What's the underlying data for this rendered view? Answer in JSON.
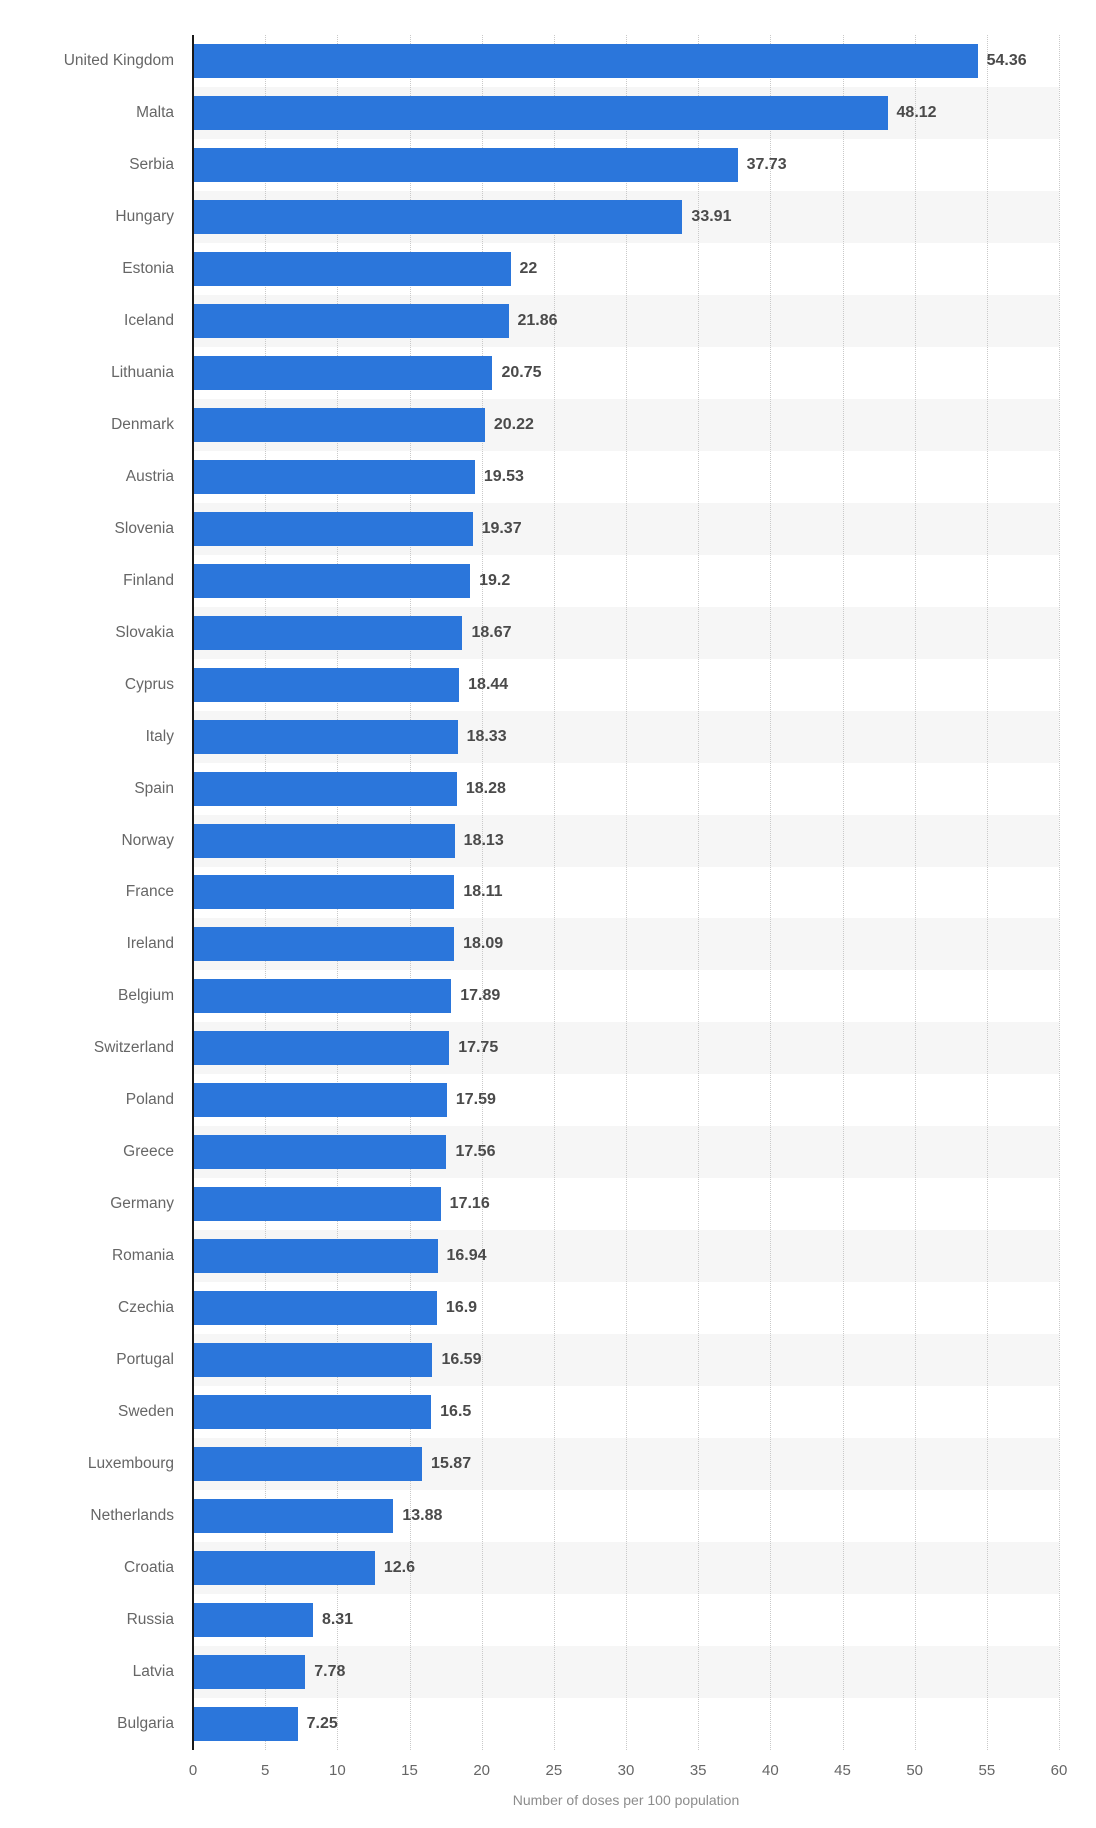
{
  "chart_data": {
    "type": "bar",
    "orientation": "horizontal",
    "title": "",
    "xlabel": "Number of doses per 100 population",
    "xlim": [
      0,
      60
    ],
    "x_ticks": [
      0,
      5,
      10,
      15,
      20,
      25,
      30,
      35,
      40,
      45,
      50,
      55,
      60
    ],
    "grid": "vertical-dotted",
    "legend": "none",
    "categories": [
      "United Kingdom",
      "Malta",
      "Serbia",
      "Hungary",
      "Estonia",
      "Iceland",
      "Lithuania",
      "Denmark",
      "Austria",
      "Slovenia",
      "Finland",
      "Slovakia",
      "Cyprus",
      "Italy",
      "Spain",
      "Norway",
      "France",
      "Ireland",
      "Belgium",
      "Switzerland",
      "Poland",
      "Greece",
      "Germany",
      "Romania",
      "Czechia",
      "Portugal",
      "Sweden",
      "Luxembourg",
      "Netherlands",
      "Croatia",
      "Russia",
      "Latvia",
      "Bulgaria"
    ],
    "values": [
      54.36,
      48.12,
      37.73,
      33.91,
      22,
      21.86,
      20.75,
      20.22,
      19.53,
      19.37,
      19.2,
      18.67,
      18.44,
      18.33,
      18.28,
      18.13,
      18.11,
      18.09,
      17.89,
      17.75,
      17.59,
      17.56,
      17.16,
      16.94,
      16.9,
      16.59,
      16.5,
      15.87,
      13.88,
      12.6,
      8.31,
      7.78,
      7.25
    ],
    "value_labels": [
      "54.36",
      "48.12",
      "37.73",
      "33.91",
      "22",
      "21.86",
      "20.75",
      "20.22",
      "19.53",
      "19.37",
      "19.2",
      "18.67",
      "18.44",
      "18.33",
      "18.28",
      "18.13",
      "18.11",
      "18.09",
      "17.89",
      "17.75",
      "17.59",
      "17.56",
      "17.16",
      "16.94",
      "16.9",
      "16.59",
      "16.5",
      "15.87",
      "13.88",
      "12.6",
      "8.31",
      "7.78",
      "7.25"
    ]
  },
  "colors": {
    "bar": "#2b76db",
    "row_stripe": "#f6f6f6",
    "gridline": "#c9c9c9",
    "axis_line": "#1a1a1a",
    "category_label": "#666666",
    "value_label": "#4a4a4a",
    "tick_label": "#666666",
    "axis_title": "#8c8c8c",
    "background": "#ffffff"
  }
}
